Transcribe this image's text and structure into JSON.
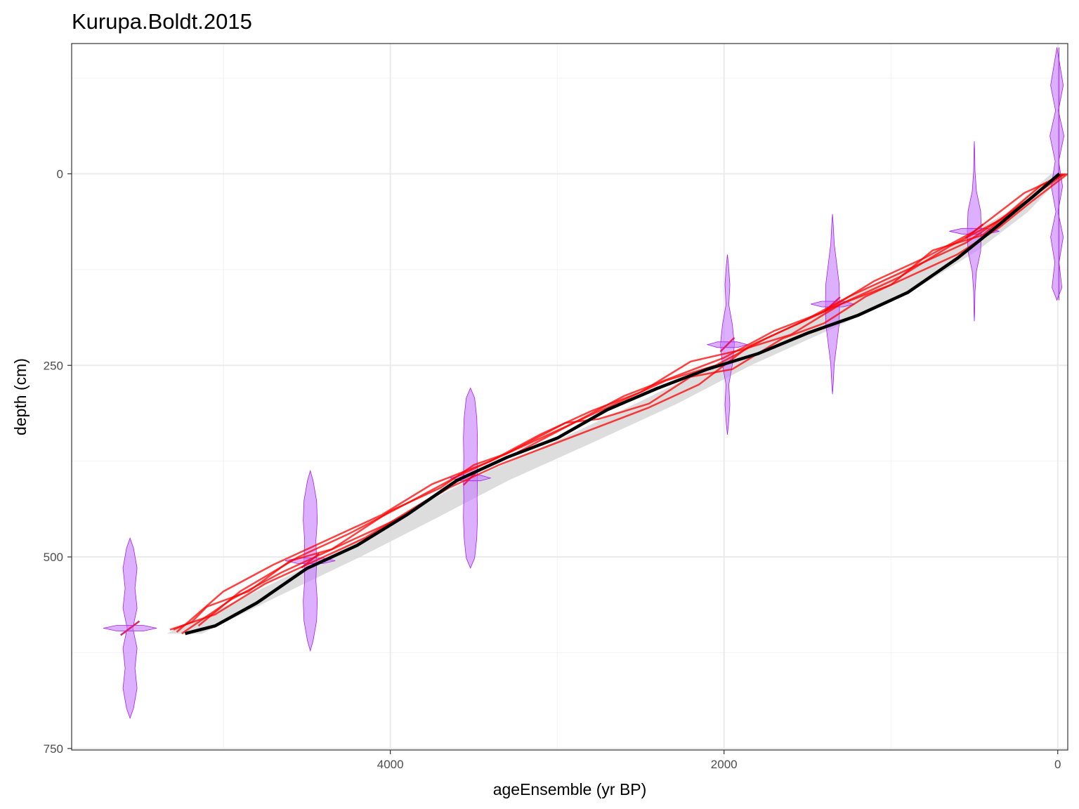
{
  "chart_data": {
    "type": "line",
    "title": "Kurupa.Boldt.2015",
    "xlabel": "ageEnsemble (yr BP)",
    "ylabel": "depth (cm)",
    "x_reversed": true,
    "y_reversed": true,
    "xlim": [
      5910,
      -60
    ],
    "ylim": [
      -170,
      752
    ],
    "x_ticks": [
      4000,
      2000,
      0
    ],
    "y_ticks": [
      0,
      250,
      500,
      750
    ],
    "grid": true,
    "colors": {
      "median": "#000000",
      "band": "#d9d9d9",
      "ensemble": "#ff0000",
      "date_fill": "#c77cff",
      "date_stroke": "#a020f0",
      "date_trend": "#e0206a"
    },
    "ribbon": {
      "depth": [
        0,
        50,
        100,
        150,
        200,
        250,
        300,
        350,
        400,
        450,
        500,
        550,
        600
      ],
      "lower_age": [
        40,
        300,
        700,
        1150,
        1600,
        2060,
        2530,
        3020,
        3530,
        3970,
        4380,
        4850,
        5340
      ],
      "upper_age": [
        -40,
        180,
        480,
        850,
        1330,
        1840,
        2280,
        2780,
        3290,
        3730,
        4180,
        4660,
        5130
      ]
    },
    "series": [
      {
        "role": "median",
        "x": [
          -10,
          150,
          400,
          600,
          900,
          1200,
          1500,
          1800,
          2100,
          2400,
          2700,
          3000,
          3300,
          3600,
          3900,
          4200,
          4500,
          4800,
          5050,
          5230
        ],
        "y": [
          0,
          30,
          75,
          110,
          155,
          185,
          208,
          235,
          255,
          280,
          308,
          345,
          370,
          400,
          445,
          485,
          515,
          560,
          590,
          600
        ]
      },
      {
        "role": "ensemble",
        "x": [
          -60,
          150,
          350,
          600,
          850,
          1150,
          1400,
          1650,
          1950,
          2200,
          2450,
          2750,
          2950,
          3300,
          3500,
          3700,
          4000,
          4350,
          4600,
          4850,
          5100,
          5190,
          5300
        ],
        "y": [
          0,
          35,
          70,
          105,
          130,
          160,
          195,
          215,
          255,
          265,
          300,
          320,
          325,
          365,
          380,
          410,
          440,
          490,
          505,
          545,
          565,
          585,
          595
        ]
      },
      {
        "role": "ensemble",
        "x": [
          -50,
          200,
          500,
          800,
          1100,
          1400,
          1700,
          2000,
          2300,
          2600,
          2900,
          3250,
          3550,
          3850,
          4150,
          4450,
          4750,
          5050,
          5320
        ],
        "y": [
          0,
          25,
          75,
          110,
          140,
          180,
          205,
          240,
          265,
          290,
          325,
          365,
          395,
          435,
          475,
          505,
          535,
          575,
          595
        ]
      },
      {
        "role": "ensemble",
        "x": [
          -40,
          250,
          550,
          900,
          1250,
          1550,
          1850,
          2150,
          2450,
          2750,
          3050,
          3350,
          3650,
          3950,
          4300,
          4650,
          4950,
          5250
        ],
        "y": [
          0,
          45,
          90,
          125,
          160,
          195,
          225,
          275,
          305,
          330,
          355,
          380,
          410,
          450,
          485,
          520,
          555,
          600
        ]
      },
      {
        "role": "ensemble",
        "x": [
          -30,
          100,
          450,
          750,
          1000,
          1300,
          1600,
          1900,
          2200,
          2500,
          2800,
          3100,
          3400,
          3750,
          4050,
          4400,
          4700,
          5000,
          5280
        ],
        "y": [
          0,
          15,
          80,
          100,
          145,
          170,
          210,
          230,
          245,
          285,
          310,
          340,
          375,
          405,
          445,
          480,
          510,
          545,
          598
        ]
      },
      {
        "role": "ensemble",
        "x": [
          -20,
          300,
          650,
          950,
          1350,
          1750,
          2050,
          2350,
          2650,
          2950,
          3250,
          3600,
          3900,
          4250,
          4550,
          4900,
          5150
        ],
        "y": [
          0,
          55,
          95,
          135,
          175,
          215,
          250,
          270,
          300,
          330,
          360,
          395,
          430,
          470,
          500,
          545,
          590
        ]
      }
    ],
    "dates": [
      {
        "age": 5,
        "depth": 0,
        "shape": "flat",
        "half_span": 20,
        "height": 330,
        "pdf": [
          0.3,
          0.9,
          0.2,
          1.0,
          0.25,
          0.8,
          0.15,
          0.9,
          0.3,
          0.7
        ]
      },
      {
        "age": 500,
        "depth": 75,
        "shape": "cross",
        "half_span": 150,
        "height": 235,
        "pdf": [
          0.05,
          0.1,
          0.3,
          0.9,
          1.0,
          0.9,
          0.3,
          0.1,
          0.05
        ]
      },
      {
        "age": 1350,
        "depth": 170,
        "shape": "cross",
        "half_span": 130,
        "height": 235,
        "pdf": [
          0.1,
          0.25,
          0.6,
          0.95,
          1.0,
          0.95,
          0.6,
          0.25,
          0.1
        ]
      },
      {
        "age": 1980,
        "depth": 223,
        "shape": "cross",
        "half_span": 120,
        "height": 235,
        "pdf": [
          0.15,
          0.35,
          0.2,
          0.7,
          1.0,
          0.7,
          0.2,
          0.35,
          0.15
        ]
      },
      {
        "age": 3520,
        "depth": 397,
        "shape": "cross",
        "half_span": 120,
        "height": 235,
        "pdf": [
          0.6,
          0.9,
          1.0,
          0.95,
          1.0,
          0.95,
          1.0,
          0.9,
          0.6
        ]
      },
      {
        "age": 4480,
        "depth": 505,
        "shape": "cross",
        "half_span": 150,
        "height": 235,
        "pdf": [
          0.4,
          0.9,
          1.0,
          0.8,
          0.9,
          0.8,
          1.0,
          0.9,
          0.4
        ]
      },
      {
        "age": 5560,
        "depth": 593,
        "shape": "cross",
        "half_span": 160,
        "height": 235,
        "pdf": [
          0.5,
          1.0,
          0.7,
          1.0,
          0.4,
          1.0,
          0.7,
          1.0,
          0.5
        ]
      }
    ]
  }
}
